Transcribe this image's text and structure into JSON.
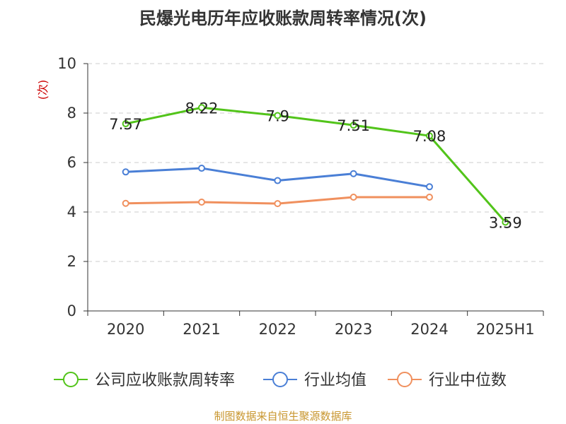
{
  "chart_data": {
    "type": "line",
    "title": "民爆光电历年应收账款周转率情况(次)",
    "ylabel": "(次)",
    "xlabel": "",
    "categories": [
      "2020",
      "2021",
      "2022",
      "2023",
      "2024",
      "2025H1"
    ],
    "yticks": [
      "0",
      "2",
      "4",
      "6",
      "8",
      "10"
    ],
    "ylim": [
      0,
      10
    ],
    "grid": "horizontal-dashed",
    "legend_position": "bottom",
    "series": [
      {
        "name": "公司应收账款周转率",
        "values": [
          7.57,
          8.22,
          7.9,
          7.51,
          7.08,
          3.59
        ],
        "labels": [
          "7.57",
          "8.22",
          "7.9",
          "7.51",
          "7.08",
          "3.59"
        ],
        "color": "#52c41a"
      },
      {
        "name": "行业均值",
        "values": [
          5.62,
          5.77,
          5.27,
          5.55,
          5.02,
          null
        ],
        "color": "#4a7fd6"
      },
      {
        "name": "行业中位数",
        "values": [
          4.35,
          4.4,
          4.34,
          4.6,
          4.6,
          null
        ],
        "color": "#f0905e"
      }
    ]
  },
  "source": "制图数据来自恒生聚源数据库",
  "colors": {
    "axis": "#333333",
    "grid": "#cccccc",
    "ylabel": "#cc0000",
    "source": "#c8962e"
  }
}
